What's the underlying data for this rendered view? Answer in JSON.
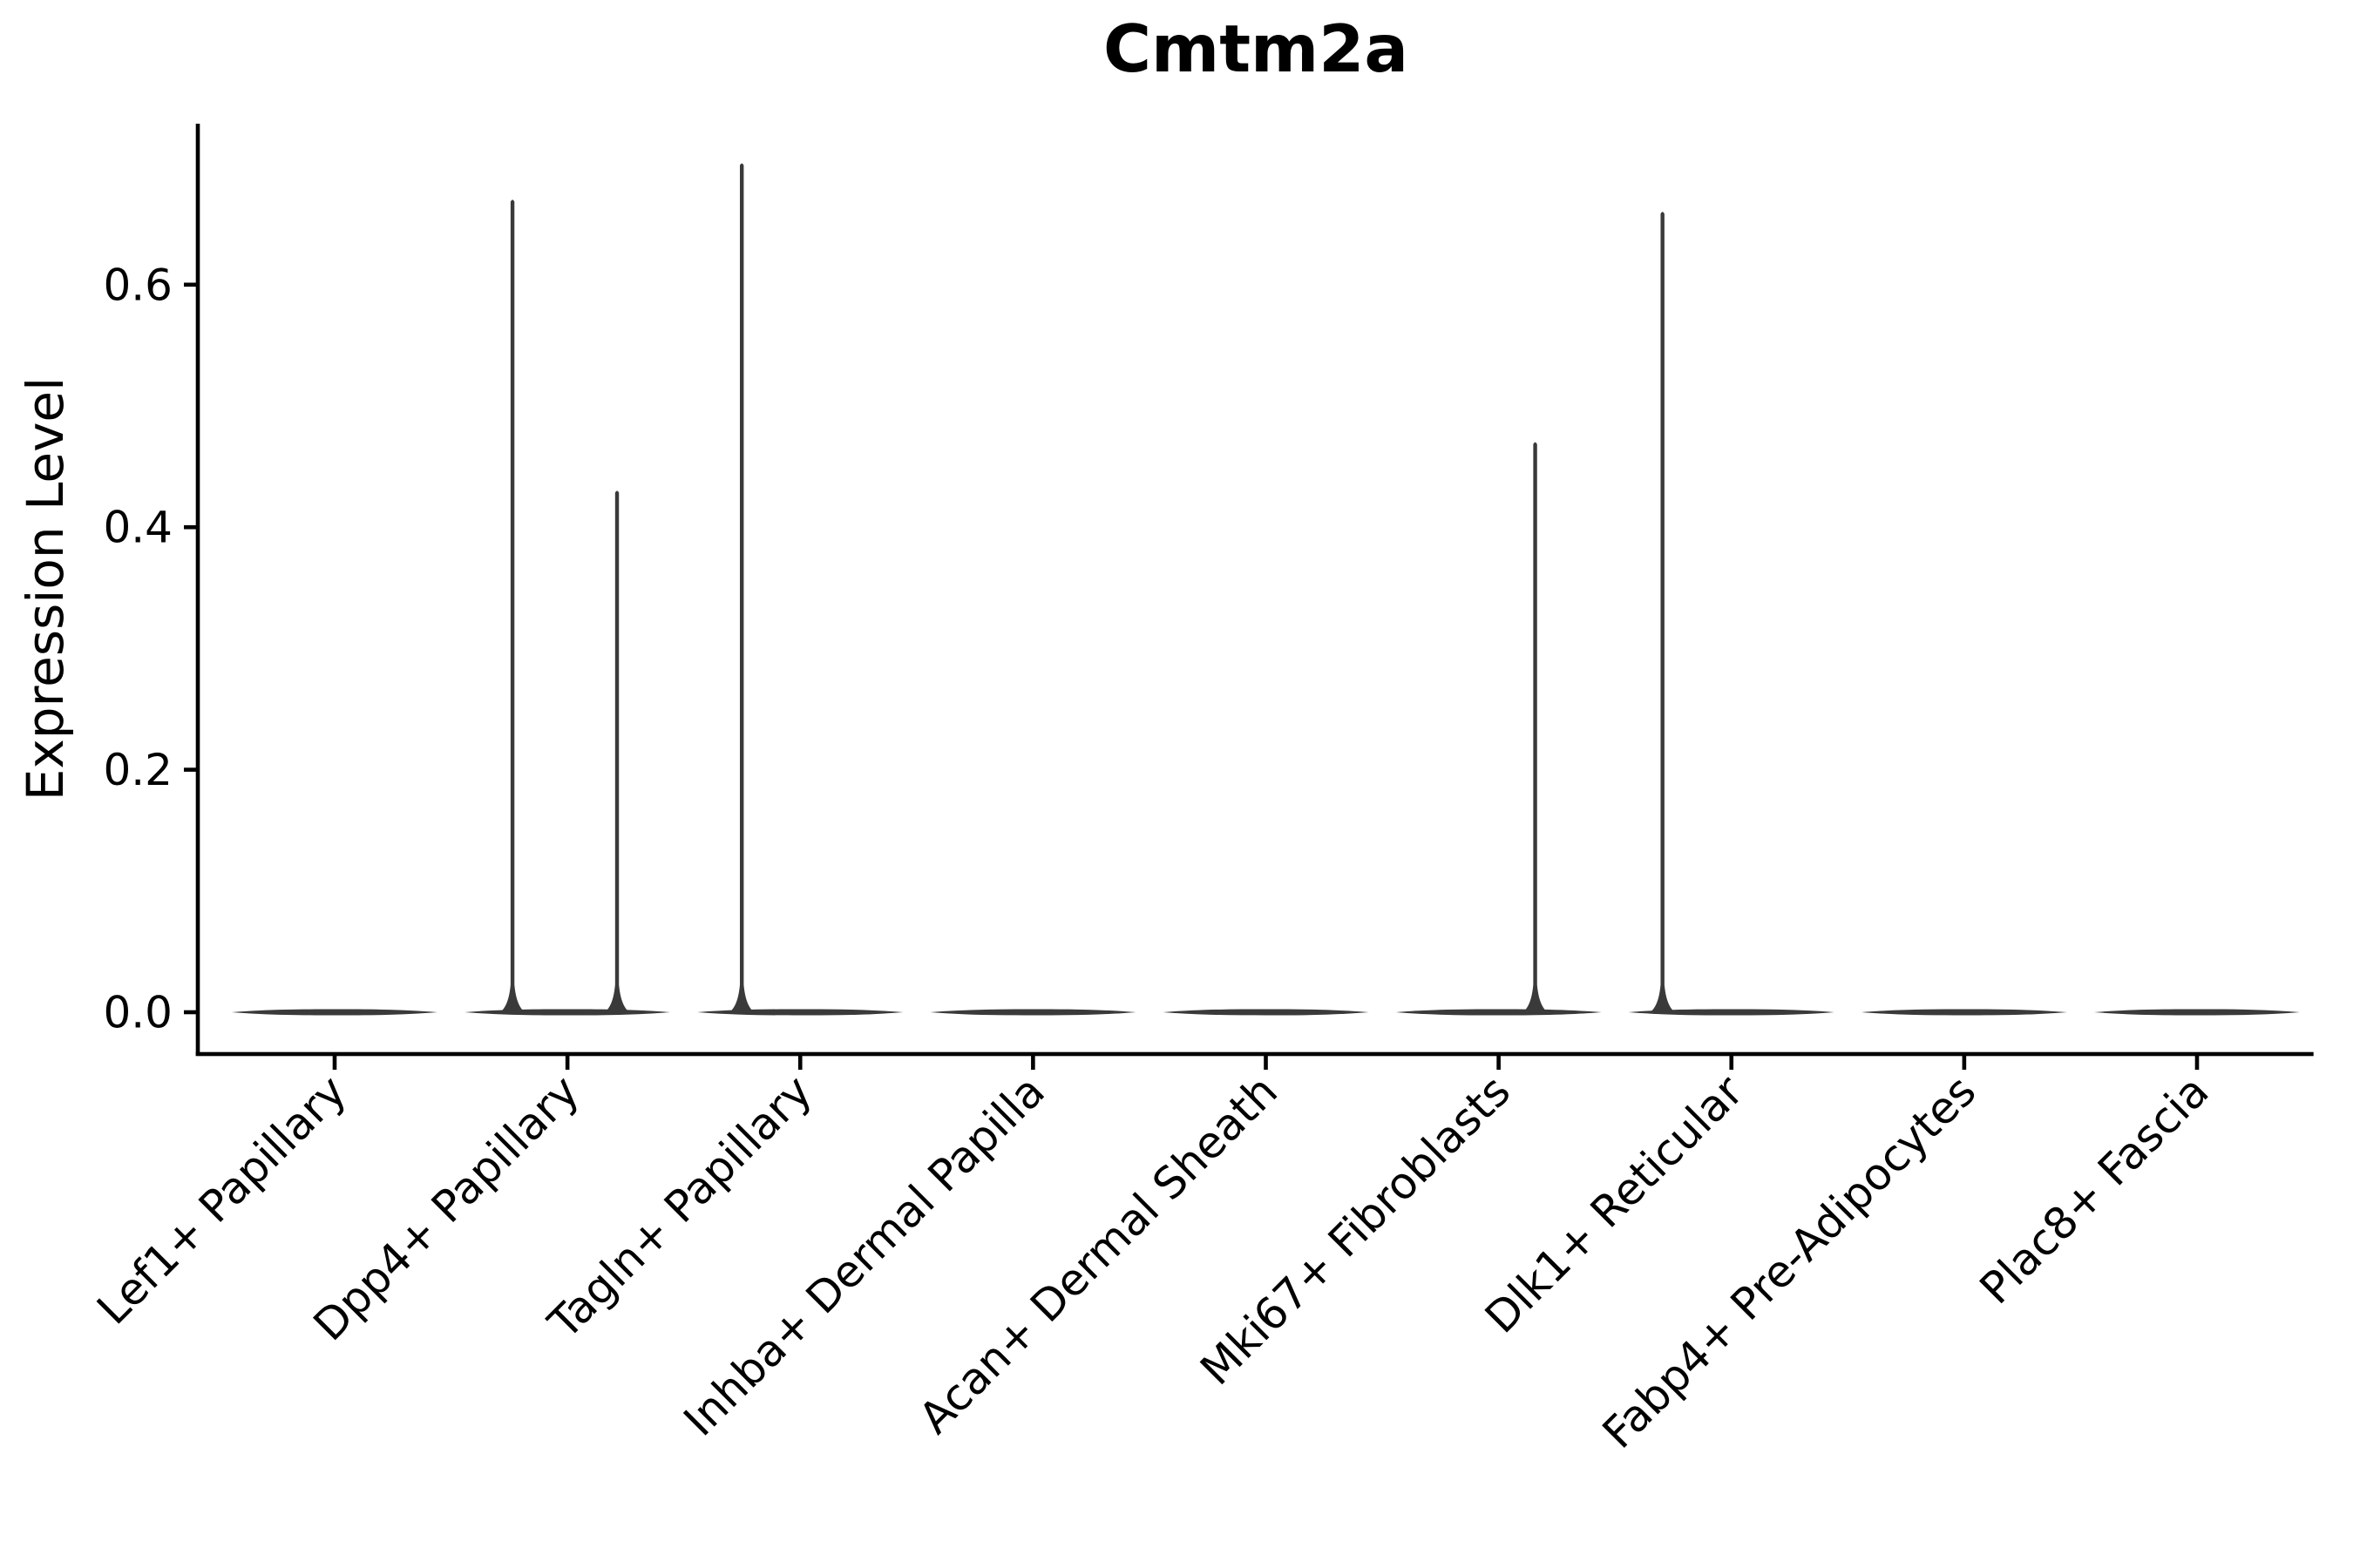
{
  "chart_data": {
    "type": "violin",
    "title": "Cmtm2a",
    "xlabel": "",
    "ylabel": "Expression Level",
    "ytick_labels": [
      "0.0",
      "0.2",
      "0.4",
      "0.6"
    ],
    "ytick_values": [
      0.0,
      0.2,
      0.4,
      0.6
    ],
    "ylim": [
      -0.034,
      0.733
    ],
    "grid": false,
    "legend": "none",
    "categories": [
      "Lef1+ Papillary",
      "Dpp4+ Papillary",
      "Tagln+ Papillary",
      "Inhba+ Dermal Papilla",
      "Acan+ Dermal Sheath",
      "Mki67+ Fibroblasts",
      "Dlk1+ Reticular",
      "Fabp4+ Pre-Adipocytes",
      "Plac8+ Fascia"
    ],
    "series": [
      {
        "category": "Lef1+ Papillary",
        "base_value": 0.0,
        "spikes": []
      },
      {
        "category": "Dpp4+ Papillary",
        "base_value": 0.0,
        "spikes": [
          {
            "offset": -0.236,
            "value": 0.67
          },
          {
            "offset": 0.213,
            "value": 0.43
          }
        ]
      },
      {
        "category": "Tagln+ Papillary",
        "base_value": 0.0,
        "spikes": [
          {
            "offset": -0.251,
            "value": 0.7
          }
        ]
      },
      {
        "category": "Inhba+ Dermal Papilla",
        "base_value": 0.0,
        "spikes": []
      },
      {
        "category": "Acan+ Dermal Sheath",
        "base_value": 0.0,
        "spikes": []
      },
      {
        "category": "Mki67+ Fibroblasts",
        "base_value": 0.0,
        "spikes": [
          {
            "offset": 0.157,
            "value": 0.47
          }
        ]
      },
      {
        "category": "Dlk1+ Reticular",
        "base_value": 0.0,
        "spikes": [
          {
            "offset": -0.296,
            "value": 0.66
          }
        ]
      },
      {
        "category": "Fabp4+ Pre-Adipocytes",
        "base_value": 0.0,
        "spikes": []
      },
      {
        "category": "Plac8+ Fascia",
        "base_value": 0.0,
        "spikes": []
      }
    ],
    "violin_halfwidth_frac": 0.442,
    "x_label_rotation_deg": 45,
    "colors": {
      "background": "#ffffff",
      "violin": "#3a3a3a",
      "axis": "#000000",
      "text": "#000000"
    }
  }
}
